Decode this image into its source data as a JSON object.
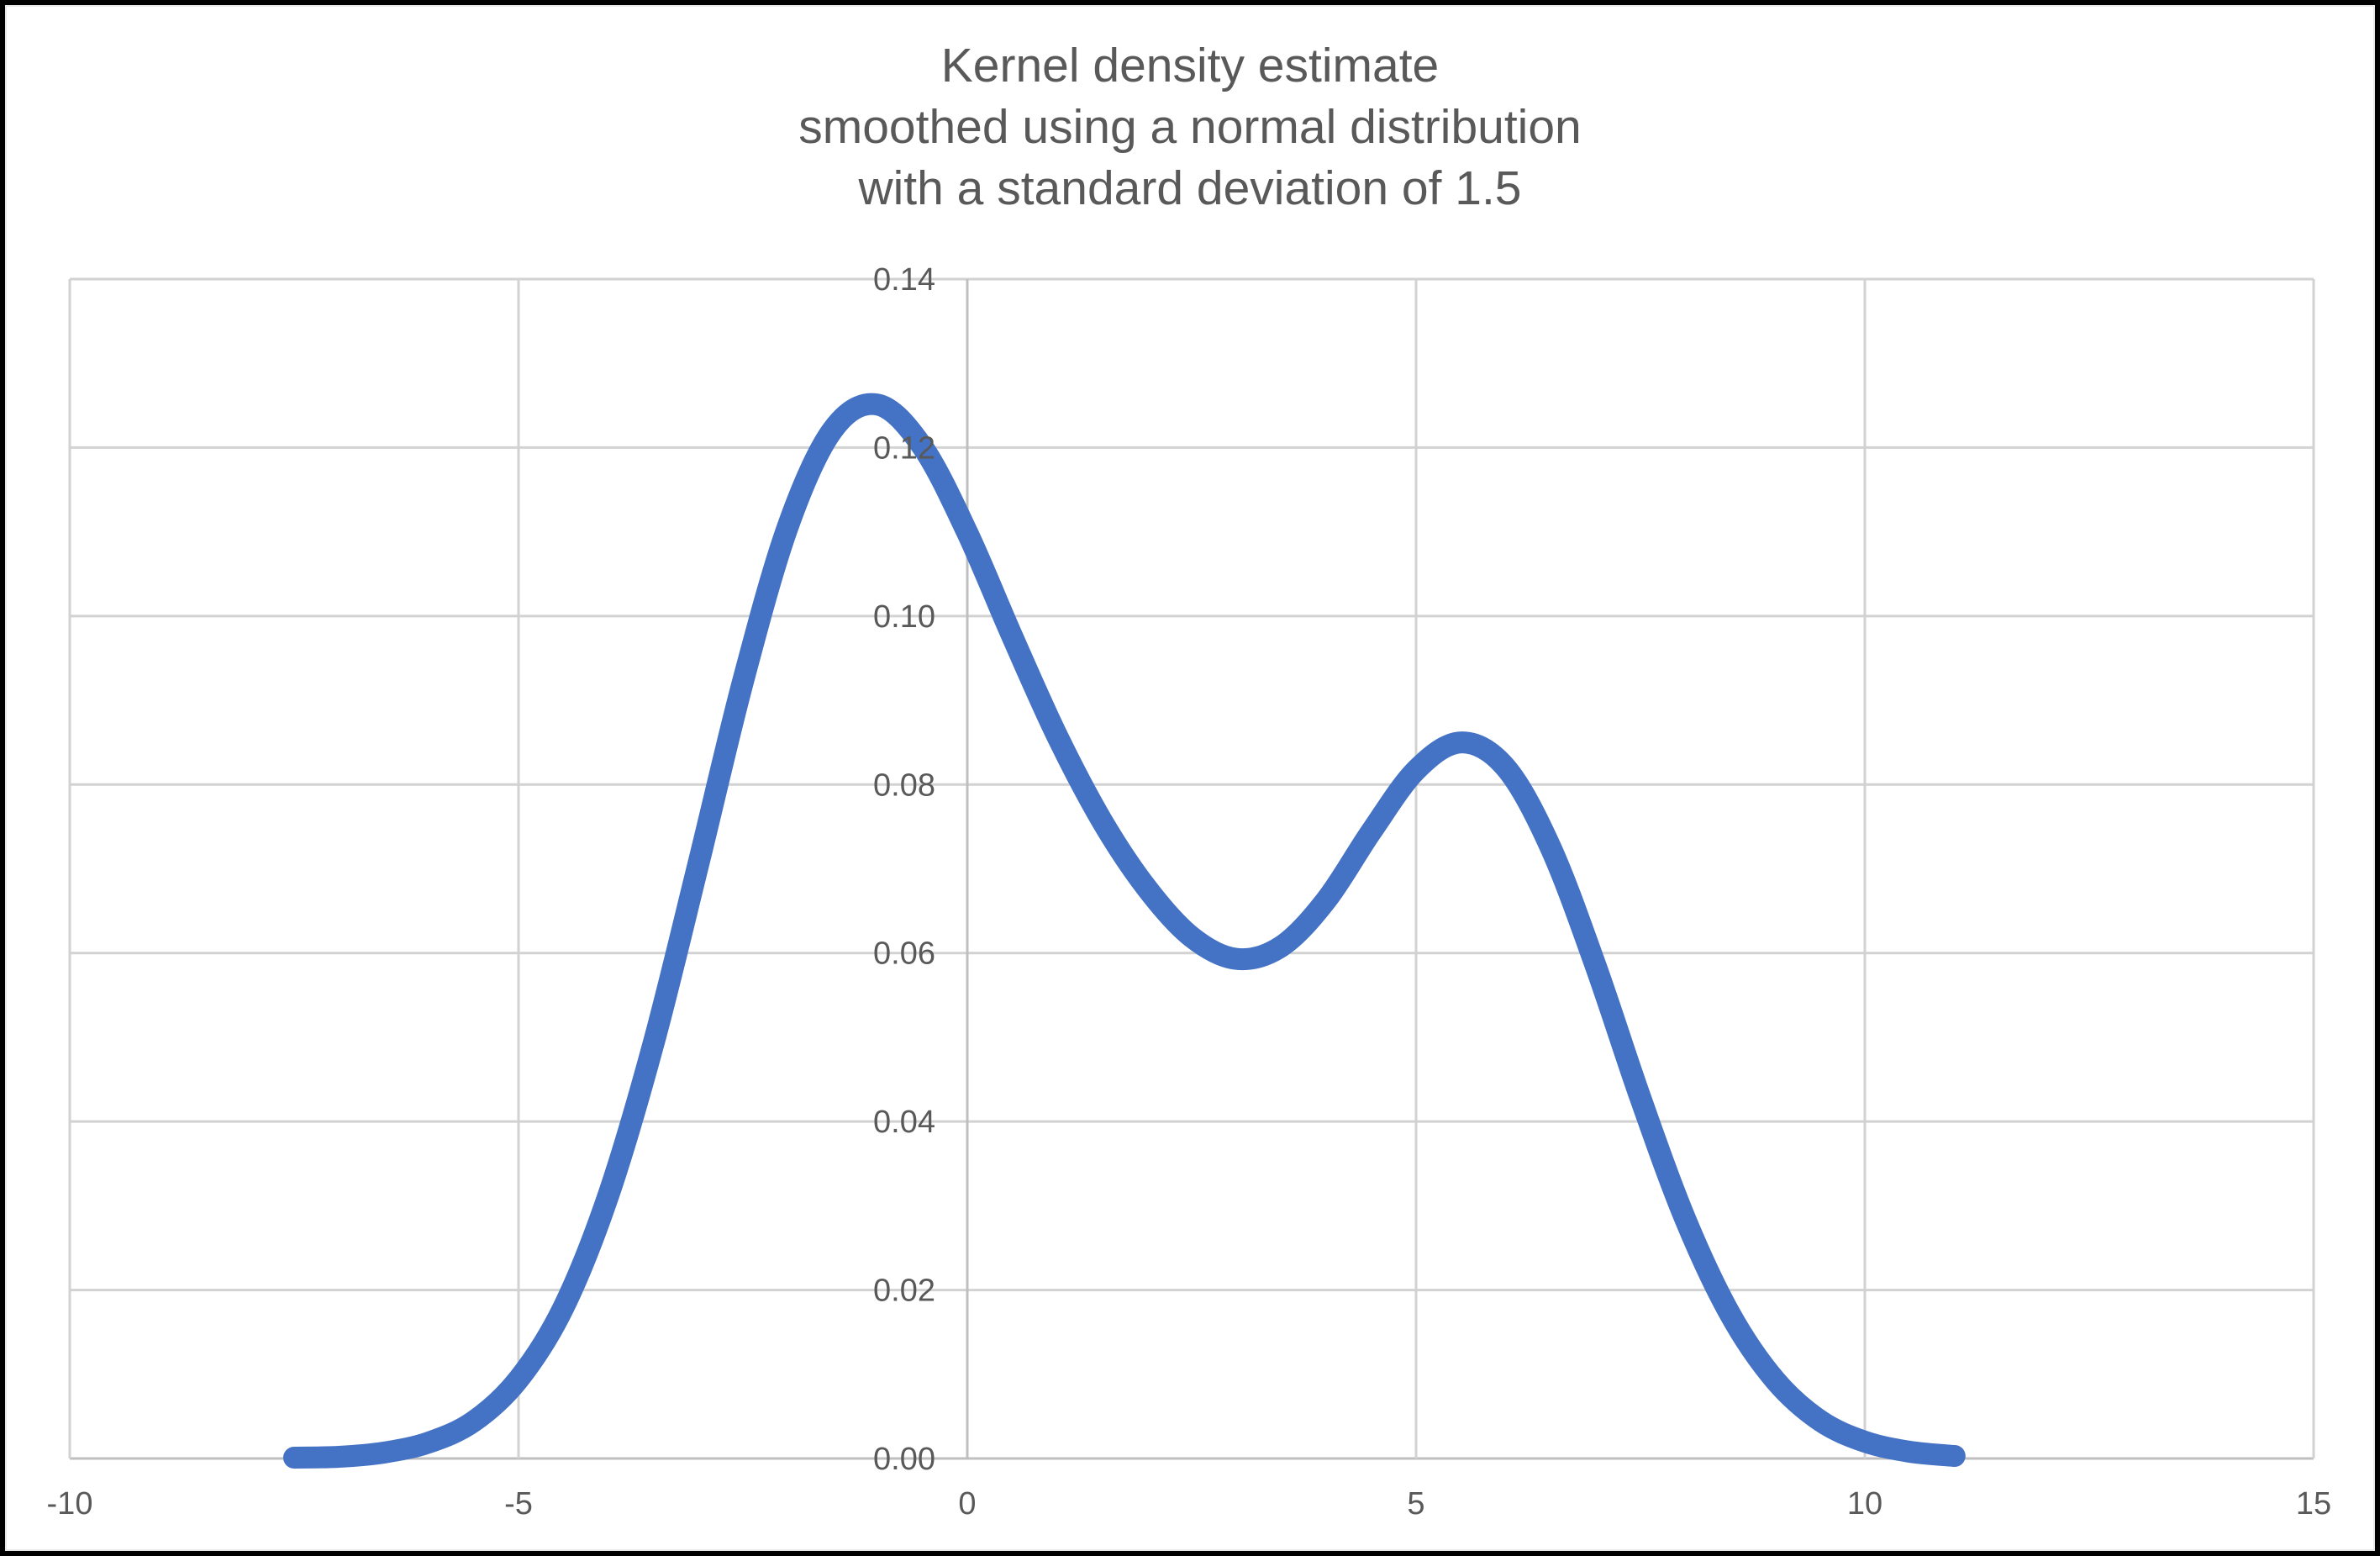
{
  "chart_data": {
    "type": "line",
    "title": "Kernel density estimate smoothed using a normal distribution with a standard deviation of 1.5",
    "title_lines": [
      "Kernel density estimate",
      "smoothed using a normal distribution",
      "with a standard deviation of 1.5"
    ],
    "xlabel": "",
    "ylabel": "",
    "xlim": [
      -10,
      15
    ],
    "ylim": [
      0,
      0.14
    ],
    "x_ticks": [
      -10,
      -5,
      0,
      5,
      10,
      15
    ],
    "x_tick_labels": [
      "-10",
      "-5",
      "0",
      "5",
      "10",
      "15"
    ],
    "y_ticks": [
      0,
      0.02,
      0.04,
      0.06,
      0.08,
      0.1,
      0.12,
      0.14
    ],
    "y_tick_labels": [
      "0.00",
      "0.02",
      "0.04",
      "0.06",
      "0.08",
      "0.10",
      "0.12",
      "0.14"
    ],
    "grid": true,
    "legend": "none",
    "series": [
      {
        "name": "Kernel density estimate",
        "x": [
          -7.5,
          -7.0,
          -6.5,
          -6.0,
          -5.5,
          -5.0,
          -4.5,
          -4.0,
          -3.5,
          -3.0,
          -2.5,
          -2.0,
          -1.5,
          -1.0,
          -0.5,
          0.0,
          0.5,
          1.0,
          1.5,
          2.0,
          2.5,
          3.0,
          3.5,
          4.0,
          4.5,
          5.0,
          5.5,
          6.0,
          6.5,
          7.0,
          7.5,
          8.0,
          8.5,
          9.0,
          9.5,
          10.0,
          10.5,
          11.0
        ],
        "y": [
          0.0001,
          0.0002,
          0.0007,
          0.0019,
          0.0044,
          0.0094,
          0.0179,
          0.0312,
          0.0491,
          0.0704,
          0.0922,
          0.1106,
          0.1221,
          0.1251,
          0.1201,
          0.1099,
          0.0976,
          0.0858,
          0.0757,
          0.0677,
          0.0619,
          0.0593,
          0.0608,
          0.0663,
          0.0744,
          0.0817,
          0.085,
          0.082,
          0.0725,
          0.0585,
          0.0428,
          0.0284,
          0.0171,
          0.0093,
          0.0045,
          0.002,
          0.0008,
          0.0003
        ]
      }
    ],
    "annotations": {
      "first_peak": {
        "x": -1.0,
        "y": 0.125
      },
      "valley": {
        "x": 3.0,
        "y": 0.059
      },
      "second_peak": {
        "x": 5.5,
        "y": 0.085
      }
    },
    "colors": {
      "line": "#4472C4",
      "gridline": "#D2D2D2",
      "axis_line": "#BFBFBF",
      "text": "#595959",
      "plot_background": "#FFFFFF",
      "frame_border": "#000000"
    }
  }
}
